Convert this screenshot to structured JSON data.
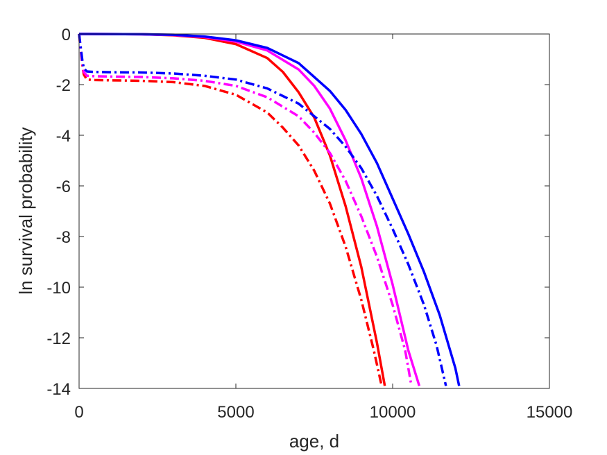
{
  "chart_data": {
    "type": "line",
    "title": "",
    "xlabel": "age, d",
    "ylabel": "ln survival probability",
    "xlim": [
      0,
      15000
    ],
    "ylim": [
      -14,
      0
    ],
    "xticks": [
      0,
      5000,
      10000,
      15000
    ],
    "yticks": [
      0,
      -2,
      -4,
      -6,
      -8,
      -10,
      -12,
      -14
    ],
    "xtick_labels": [
      "0",
      "5000",
      "10000",
      "15000"
    ],
    "ytick_labels": [
      "0",
      "-2",
      "-4",
      "-6",
      "-8",
      "-10",
      "-12",
      "-14"
    ],
    "grid": false,
    "legend": "none",
    "series": [
      {
        "color": "#ff0000",
        "style": "solid",
        "x": [
          0,
          2000,
          3000,
          4000,
          5000,
          6000,
          6500,
          7000,
          7500,
          8000,
          8500,
          9000,
          9500,
          9750
        ],
        "y": [
          0,
          -0.01,
          -0.05,
          -0.15,
          -0.4,
          -0.95,
          -1.5,
          -2.3,
          -3.3,
          -4.8,
          -6.8,
          -9.2,
          -12.2,
          -13.9
        ]
      },
      {
        "color": "#ff00ff",
        "style": "solid",
        "x": [
          0,
          2000,
          3000,
          4000,
          5000,
          6000,
          7000,
          7500,
          8000,
          8500,
          9000,
          9500,
          10000,
          10500,
          10850
        ],
        "y": [
          0,
          -0.01,
          -0.04,
          -0.12,
          -0.3,
          -0.65,
          -1.4,
          -2.05,
          -2.95,
          -4.2,
          -5.7,
          -7.6,
          -9.9,
          -12.5,
          -13.9
        ]
      },
      {
        "color": "#0000ff",
        "style": "solid",
        "x": [
          0,
          2000,
          3000,
          4000,
          5000,
          6000,
          7000,
          8000,
          8500,
          9000,
          9500,
          10000,
          10500,
          11000,
          11500,
          12000,
          12120
        ],
        "y": [
          0,
          -0.01,
          -0.03,
          -0.1,
          -0.25,
          -0.55,
          -1.15,
          -2.25,
          -3.0,
          -3.95,
          -5.1,
          -6.5,
          -7.9,
          -9.4,
          -11.1,
          -13.2,
          -13.9
        ]
      },
      {
        "color": "#ff0000",
        "style": "dashdot",
        "x": [
          0,
          100,
          150,
          250,
          500,
          1000,
          2000,
          3000,
          4000,
          5000,
          6000,
          6500,
          7000,
          7500,
          8000,
          8500,
          9000,
          9400,
          9650
        ],
        "y": [
          0,
          -1.2,
          -1.6,
          -1.8,
          -1.82,
          -1.83,
          -1.85,
          -1.9,
          -2.05,
          -2.4,
          -3.1,
          -3.7,
          -4.4,
          -5.4,
          -6.7,
          -8.4,
          -10.5,
          -12.5,
          -13.9
        ]
      },
      {
        "color": "#ff00ff",
        "style": "dashdot",
        "x": [
          0,
          100,
          150,
          250,
          500,
          1000,
          2000,
          3000,
          4000,
          5000,
          6000,
          7000,
          7500,
          8000,
          8500,
          9000,
          9500,
          10000,
          10400,
          10600
        ],
        "y": [
          0,
          -1.1,
          -1.5,
          -1.65,
          -1.67,
          -1.68,
          -1.7,
          -1.75,
          -1.85,
          -2.05,
          -2.5,
          -3.25,
          -3.9,
          -4.7,
          -5.8,
          -7.2,
          -8.8,
          -10.7,
          -12.5,
          -13.9
        ]
      },
      {
        "color": "#0000ff",
        "style": "dashdot",
        "x": [
          0,
          100,
          150,
          250,
          500,
          1000,
          2000,
          3000,
          4000,
          5000,
          6000,
          7000,
          8000,
          8500,
          9000,
          9500,
          10000,
          10500,
          11000,
          11400,
          11700
        ],
        "y": [
          0,
          -1.0,
          -1.35,
          -1.48,
          -1.5,
          -1.51,
          -1.52,
          -1.56,
          -1.65,
          -1.8,
          -2.15,
          -2.75,
          -3.75,
          -4.45,
          -5.3,
          -6.4,
          -7.7,
          -9.1,
          -10.7,
          -12.3,
          -13.9
        ]
      }
    ]
  }
}
